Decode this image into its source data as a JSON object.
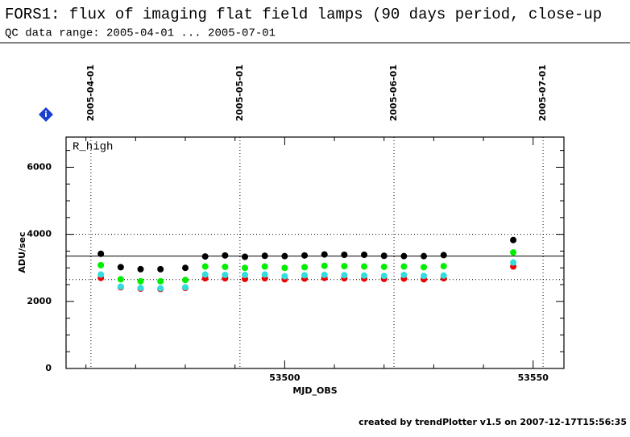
{
  "chart_data": {
    "type": "scatter",
    "title": "FORS1: flux of imaging flat field lamps (90 days period, close-up",
    "subtitle": "QC data range: 2005-04-01 ... 2005-07-01",
    "panel_label": "R_high",
    "x_label": "MJD_OBS",
    "y_label": "ADU/sec",
    "footer": "created by trendPlotter v1.5 on 2007-12-17T15:56:35",
    "xlim": [
      53456,
      53556.2
    ],
    "ylim": [
      0,
      6900
    ],
    "xticks": [
      53500,
      53550
    ],
    "yticks": [
      0,
      2000,
      4000,
      6000
    ],
    "xminorticks": [
      53460,
      53470,
      53480,
      53490,
      53510,
      53520,
      53530,
      53540
    ],
    "yminorticks": [
      500,
      1000,
      1500,
      2500,
      3000,
      3500,
      4500,
      5000,
      5500,
      6500
    ],
    "date_markers": [
      {
        "x": 53461,
        "label": "2005-04-01"
      },
      {
        "x": 53491,
        "label": "2005-05-01"
      },
      {
        "x": 53522,
        "label": "2005-06-01"
      },
      {
        "x": 53552,
        "label": "2005-07-01"
      }
    ],
    "reference_lines": {
      "mean": 3350,
      "upper": 4000,
      "lower": 2650
    },
    "x": [
      53463,
      53467,
      53471,
      53475,
      53480,
      53484,
      53488,
      53492,
      53496,
      53500,
      53504,
      53508,
      53512,
      53516,
      53520,
      53524,
      53528,
      53532,
      53546
    ],
    "series": [
      {
        "color": "#000000",
        "values": [
          3420,
          3020,
          2960,
          2960,
          3000,
          3340,
          3370,
          3330,
          3360,
          3350,
          3370,
          3400,
          3390,
          3390,
          3360,
          3350,
          3350,
          3380,
          3830
        ]
      },
      {
        "color": "#00ee00",
        "values": [
          3080,
          2660,
          2600,
          2600,
          2640,
          3040,
          3030,
          3000,
          3040,
          3000,
          3020,
          3060,
          3050,
          3040,
          3030,
          3040,
          3020,
          3050,
          3460
        ]
      },
      {
        "color": "#ee0000",
        "values": [
          2700,
          2420,
          2380,
          2370,
          2400,
          2690,
          2690,
          2670,
          2690,
          2660,
          2680,
          2700,
          2690,
          2680,
          2670,
          2680,
          2660,
          2690,
          3040
        ]
      },
      {
        "color": "#33dddd",
        "values": [
          2800,
          2440,
          2400,
          2390,
          2420,
          2800,
          2790,
          2790,
          2800,
          2750,
          2780,
          2790,
          2780,
          2770,
          2760,
          2790,
          2760,
          2770,
          3160
        ]
      }
    ]
  }
}
